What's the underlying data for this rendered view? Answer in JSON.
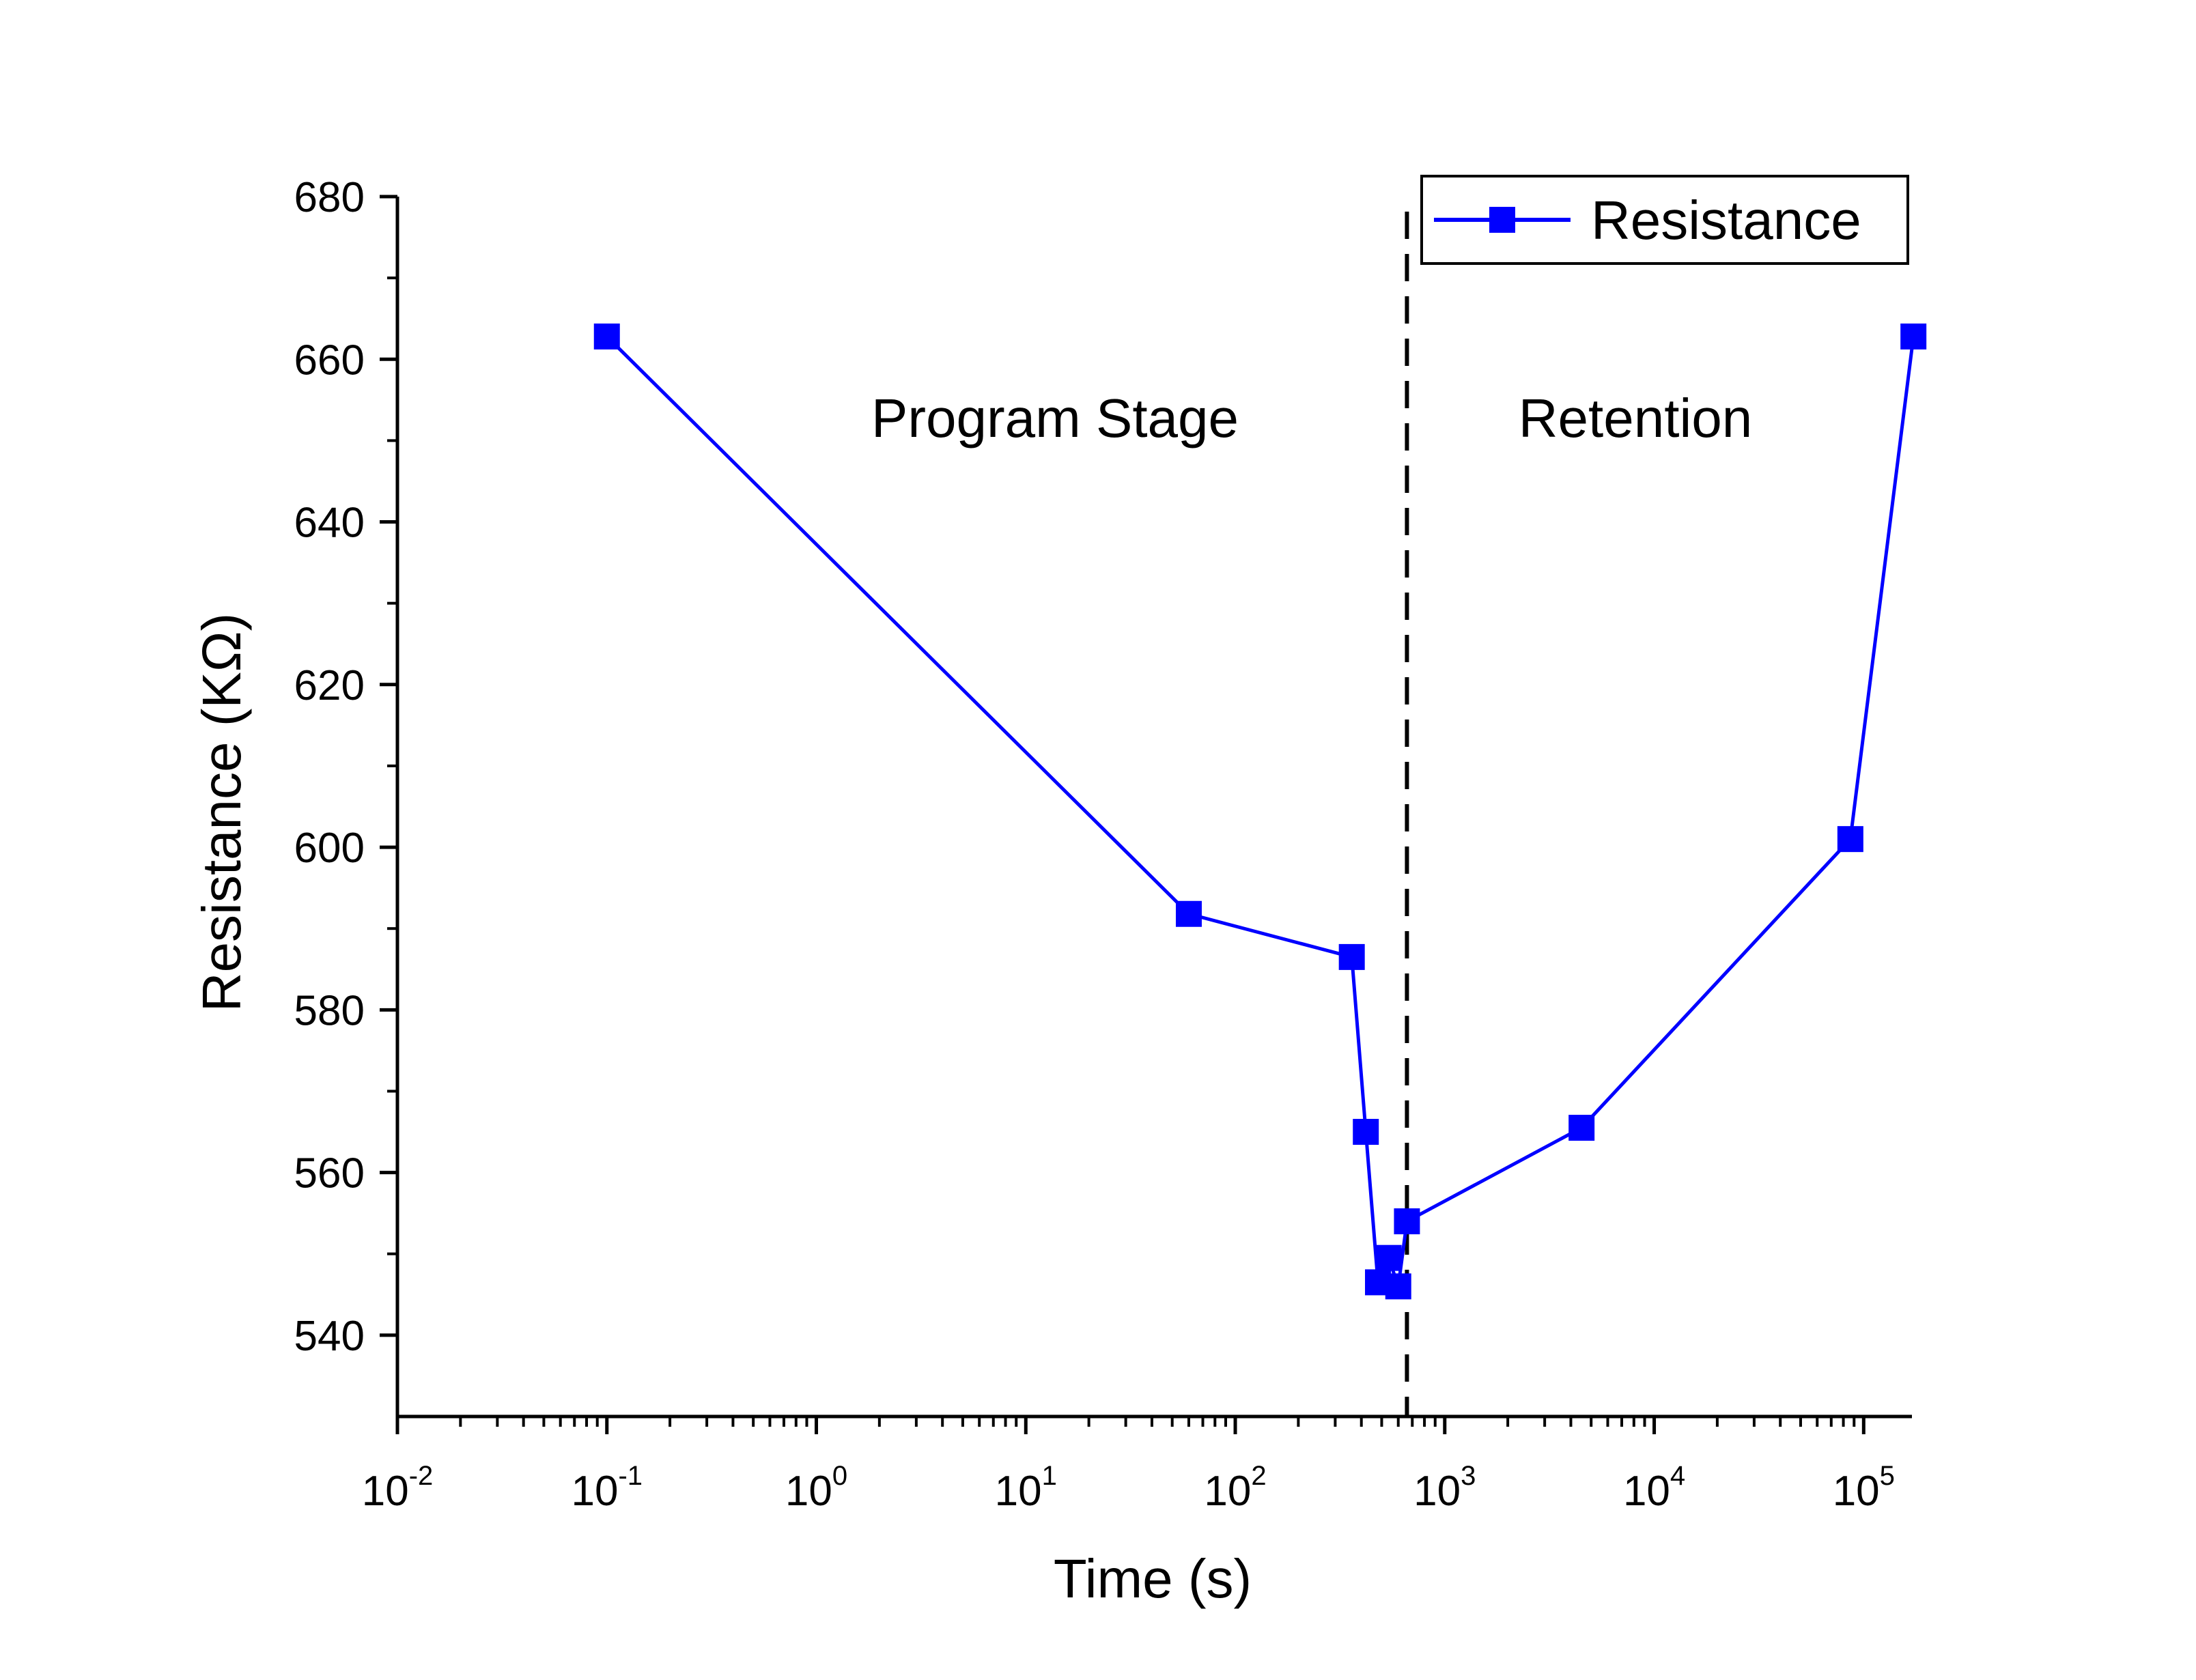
{
  "chart_data": {
    "type": "line",
    "title": "",
    "xlabel": "Time (s)",
    "ylabel": "Resistance (KΩ)",
    "xscale": "log",
    "xlim": [
      0.01,
      170000
    ],
    "ylim": [
      530,
      680
    ],
    "x_ticks": [
      {
        "value": 0.01,
        "base": "10",
        "exp": "-2"
      },
      {
        "value": 0.1,
        "base": "10",
        "exp": "-1"
      },
      {
        "value": 1,
        "base": "10",
        "exp": "0"
      },
      {
        "value": 10,
        "base": "10",
        "exp": "1"
      },
      {
        "value": 100,
        "base": "10",
        "exp": "2"
      },
      {
        "value": 1000,
        "base": "10",
        "exp": "3"
      },
      {
        "value": 10000,
        "base": "10",
        "exp": "4"
      },
      {
        "value": 100000,
        "base": "10",
        "exp": "5"
      }
    ],
    "y_ticks": [
      540,
      560,
      580,
      600,
      620,
      640,
      660,
      680
    ],
    "series": [
      {
        "name": "Resistance",
        "color": "#0000ff",
        "marker": "square",
        "x": [
          0.1,
          60,
          360,
          420,
          480,
          540,
          600,
          660,
          4500,
          86400,
          172800
        ],
        "y": [
          662.8,
          591.8,
          586.5,
          565,
          546.5,
          549.5,
          546,
          554,
          565.5,
          601,
          662.8
        ]
      }
    ],
    "divider": {
      "x": 660,
      "style": "dashed",
      "color": "#000000"
    },
    "annotations": [
      {
        "text": "Program Stage",
        "x": 5,
        "y": 650
      },
      {
        "text": "Retention",
        "x": 10000,
        "y": 650
      }
    ],
    "legend": {
      "position": "top-right",
      "entries": [
        "Resistance"
      ]
    },
    "grid": false
  }
}
